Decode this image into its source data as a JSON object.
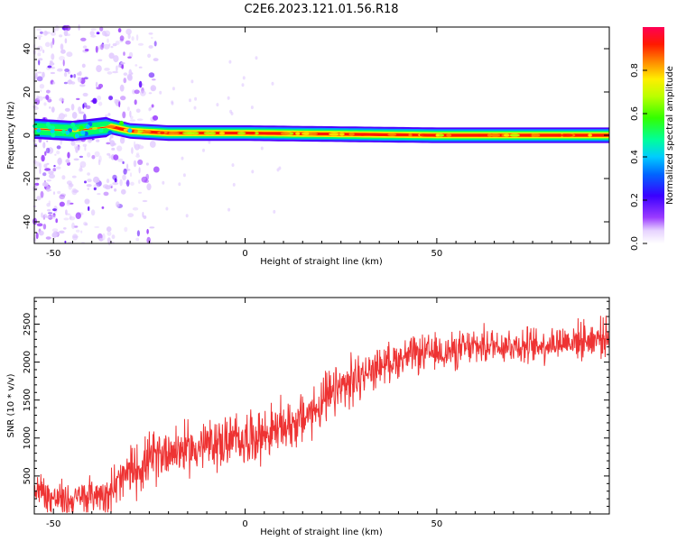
{
  "title": "C2E6.2023.121.01.56.R18",
  "chart_data": [
    {
      "type": "heatmap",
      "xlabel": "Height of straight line (km)",
      "ylabel": "Frequency (Hz)",
      "xlim": [
        -55,
        95
      ],
      "ylim": [
        -50,
        50
      ],
      "xticks": [
        -50,
        0,
        50
      ],
      "yticks": [
        -40,
        -20,
        0,
        20,
        40
      ],
      "grid": false,
      "ridge": [
        {
          "x": -55,
          "y": 3
        },
        {
          "x": -45,
          "y": 2
        },
        {
          "x": -35,
          "y": 4
        },
        {
          "x": -30,
          "y": 2
        },
        {
          "x": -20,
          "y": 1
        },
        {
          "x": 0,
          "y": 1
        },
        {
          "x": 50,
          "y": 0
        },
        {
          "x": 95,
          "y": 0
        }
      ],
      "colorbar": {
        "label": "Normalized spectral amplitude",
        "range": [
          0,
          1
        ],
        "ticks": [
          0.0,
          0.2,
          0.4,
          0.6,
          0.8
        ],
        "tick_labels": [
          "0.0",
          "0.2",
          "0.4",
          "0.6",
          "0.8"
        ]
      }
    },
    {
      "type": "line",
      "xlabel": "Height of straight line (km)",
      "ylabel": "SNR (10 * v/v)",
      "xlim": [
        -55,
        95
      ],
      "ylim": [
        0,
        2850
      ],
      "xticks": [
        -50,
        0,
        50
      ],
      "yticks": [
        500,
        1000,
        1500,
        2000,
        2500
      ],
      "grid": false,
      "color": "#ee3333",
      "trend": [
        {
          "x": -55,
          "y": 350
        },
        {
          "x": -50,
          "y": 200
        },
        {
          "x": -45,
          "y": 180
        },
        {
          "x": -40,
          "y": 250
        },
        {
          "x": -35,
          "y": 300
        },
        {
          "x": -30,
          "y": 550
        },
        {
          "x": -25,
          "y": 700
        },
        {
          "x": -20,
          "y": 850
        },
        {
          "x": -15,
          "y": 850
        },
        {
          "x": -10,
          "y": 900
        },
        {
          "x": -5,
          "y": 950
        },
        {
          "x": 0,
          "y": 1000
        },
        {
          "x": 5,
          "y": 1050
        },
        {
          "x": 10,
          "y": 1150
        },
        {
          "x": 15,
          "y": 1250
        },
        {
          "x": 20,
          "y": 1450
        },
        {
          "x": 25,
          "y": 1650
        },
        {
          "x": 30,
          "y": 1800
        },
        {
          "x": 35,
          "y": 1950
        },
        {
          "x": 40,
          "y": 2050
        },
        {
          "x": 45,
          "y": 2100
        },
        {
          "x": 50,
          "y": 2120
        },
        {
          "x": 55,
          "y": 2150
        },
        {
          "x": 60,
          "y": 2200
        },
        {
          "x": 65,
          "y": 2230
        },
        {
          "x": 70,
          "y": 2230
        },
        {
          "x": 75,
          "y": 2200
        },
        {
          "x": 80,
          "y": 2250
        },
        {
          "x": 85,
          "y": 2280
        },
        {
          "x": 90,
          "y": 2300
        },
        {
          "x": 95,
          "y": 2350
        }
      ]
    }
  ]
}
